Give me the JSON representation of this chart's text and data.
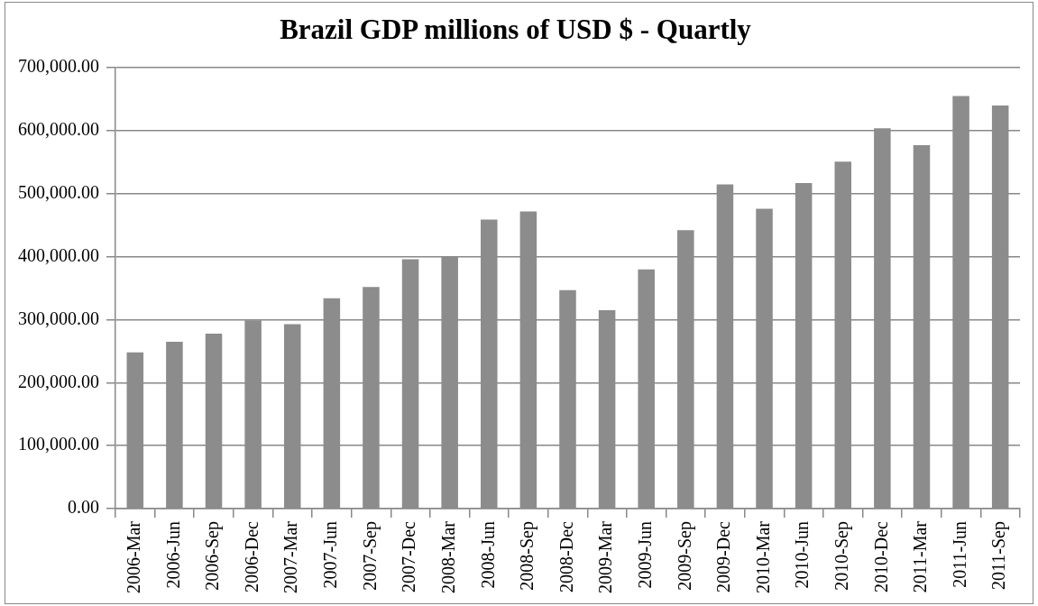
{
  "chart_data": {
    "type": "bar",
    "title": "Brazil GDP millions of USD $ - Quartly",
    "categories": [
      "2006-Mar",
      "2006-Jun",
      "2006-Sep",
      "2006-Dec",
      "2007-Mar",
      "2007-Jun",
      "2007-Sep",
      "2007-Dec",
      "2008-Mar",
      "2008-Jun",
      "2008-Sep",
      "2008-Dec",
      "2009-Mar",
      "2009-Jun",
      "2009-Sep",
      "2009-Dec",
      "2010-Mar",
      "2010-Jun",
      "2010-Sep",
      "2010-Dec",
      "2011-Mar",
      "2011-Jun",
      "2011-Sep"
    ],
    "values": [
      248000,
      265000,
      278000,
      299000,
      293000,
      334000,
      352000,
      396000,
      400000,
      459000,
      472000,
      347000,
      315000,
      380000,
      442000,
      515000,
      476000,
      517000,
      551000,
      604000,
      577000,
      655000,
      640000
    ],
    "color": "#8c8c8c",
    "ylim": [
      0,
      700000
    ],
    "yticks": [
      {
        "value": 0,
        "label": "0.00"
      },
      {
        "value": 100000,
        "label": "100,000.00"
      },
      {
        "value": 200000,
        "label": "200,000.00"
      },
      {
        "value": 300000,
        "label": "300,000.00"
      },
      {
        "value": 400000,
        "label": "400,000.00"
      },
      {
        "value": 500000,
        "label": "500,000.00"
      },
      {
        "value": 600000,
        "label": "600,000.00"
      },
      {
        "value": 700000,
        "label": "700,000.00"
      }
    ],
    "grid": "y",
    "legend": false
  }
}
